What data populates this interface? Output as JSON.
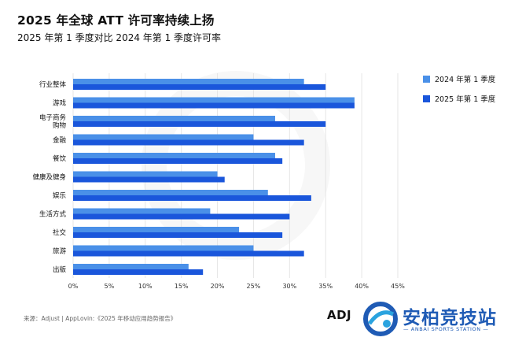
{
  "header": {
    "title": "2025 年全球 ATT 许可率持续上扬",
    "subtitle": "2025 年第 1 季度对比 2024 年第 1 季度许可率"
  },
  "chart_data": {
    "type": "bar",
    "orientation": "horizontal",
    "categories": [
      "行业整体",
      "游戏",
      "电子商务\n购物",
      "金融",
      "餐饮",
      "健康及健身",
      "娱乐",
      "生活方式",
      "社交",
      "旅游",
      "出版"
    ],
    "series": [
      {
        "name": "2024 年第 1 季度",
        "color": "#4a90e8",
        "values": [
          32,
          39,
          28,
          25,
          28,
          20,
          27,
          19,
          23,
          25,
          16
        ]
      },
      {
        "name": "2025 年第 1 季度",
        "color": "#1a56db",
        "values": [
          35,
          39,
          35,
          32,
          29,
          21,
          33,
          30,
          29,
          32,
          18
        ]
      }
    ],
    "xlim": [
      0,
      45
    ],
    "x_ticks": [
      "0%",
      "5%",
      "10%",
      "15%",
      "20%",
      "25%",
      "30%",
      "35%",
      "40%",
      "45%"
    ],
    "grid": "vertical",
    "legend": "right"
  },
  "footer": {
    "source": "来源：Adjust | AppLovin:《2025 年移动应用趋势报告》",
    "adj_logo": "ADJ",
    "brand_name": "安柏竞技站",
    "brand_sub": "— ANBAI SPORTS STATION —"
  }
}
